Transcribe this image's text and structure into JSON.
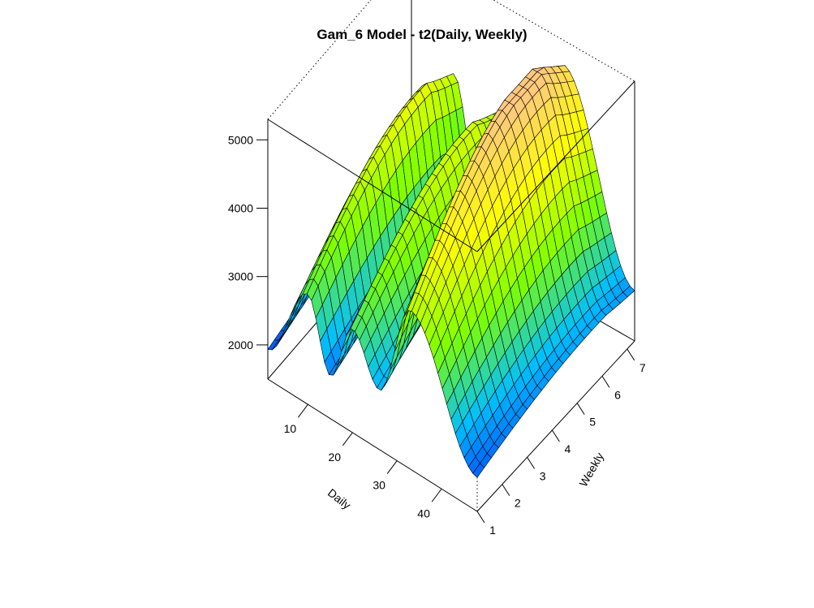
{
  "chart_data": {
    "type": "surface3d",
    "title": "Gam_6 Model - t2(Daily, Weekly)",
    "xlabel": "Daily",
    "ylabel": "Weekly",
    "zlabel": "",
    "xlim": [
      1,
      48
    ],
    "ylim": [
      1,
      7.3
    ],
    "zlim": [
      1500,
      5300
    ],
    "x_ticks": [
      10,
      20,
      30,
      40
    ],
    "y_ticks": [
      1,
      2,
      3,
      4,
      5,
      6,
      7
    ],
    "z_ticks": [
      2000,
      3000,
      4000,
      5000
    ],
    "colors": [
      "#0000ff",
      "#00bfff",
      "#7fff00",
      "#ffff00",
      "#ffc880"
    ],
    "surface": {
      "daily_peaks": [
        {
          "daily": 10,
          "value": 4100
        },
        {
          "daily": 20,
          "value": 3950
        },
        {
          "daily": 33,
          "value": 5250
        }
      ],
      "daily_troughs": [
        {
          "daily": 1,
          "value": 2200
        },
        {
          "daily": 15,
          "value": 2500
        },
        {
          "daily": 26,
          "value": 2900
        },
        {
          "daily": 48,
          "value": 2300
        }
      ],
      "weekly_effect": "highest near Weekly 5-6, lowest near Weekly 1"
    }
  }
}
